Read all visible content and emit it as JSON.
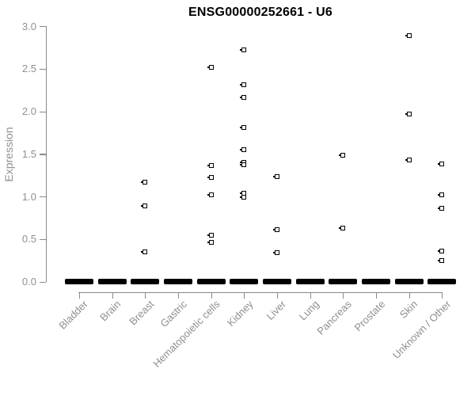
{
  "chart_data": {
    "type": "scatter",
    "title": "ENSG00000252661 - U6",
    "xlabel": "",
    "ylabel": "Expression",
    "ylim": [
      0.0,
      3.0
    ],
    "ytick_labels": [
      "0.0",
      "0.5",
      "1.0",
      "1.5",
      "2.0",
      "2.5",
      "3.0"
    ],
    "grid": false,
    "legend": false,
    "marker": "open-square",
    "categories": [
      "Bladder",
      "Brain",
      "Breast",
      "Gastric",
      "Hematopoietic cells",
      "Kidney",
      "Liver",
      "Lung",
      "Pancreas",
      "Prostate",
      "Skin",
      "Unknown / Other"
    ],
    "series": [
      {
        "name": "Bladder",
        "values": []
      },
      {
        "name": "Brain",
        "values": []
      },
      {
        "name": "Breast",
        "values": [
          1.17,
          0.89,
          0.35
        ]
      },
      {
        "name": "Gastric",
        "values": []
      },
      {
        "name": "Hematopoietic cells",
        "values": [
          2.52,
          1.36,
          1.22,
          1.02,
          0.54,
          0.46
        ]
      },
      {
        "name": "Kidney",
        "values": [
          2.72,
          2.31,
          2.16,
          1.81,
          1.55,
          1.4,
          1.37,
          1.04,
          0.99
        ]
      },
      {
        "name": "Liver",
        "values": [
          1.23,
          0.61,
          0.34
        ]
      },
      {
        "name": "Lung",
        "values": []
      },
      {
        "name": "Pancreas",
        "values": [
          1.48,
          0.63
        ]
      },
      {
        "name": "Prostate",
        "values": []
      },
      {
        "name": "Skin",
        "values": [
          2.89,
          1.97,
          1.43
        ]
      },
      {
        "name": "Unknown / Other",
        "values": [
          1.38,
          1.02,
          0.86,
          0.36,
          0.25
        ]
      }
    ],
    "zero_cluster_every_category": true
  },
  "colors": {
    "background": "#ffffff",
    "marker": "#000000",
    "axis": "#898989",
    "axis_text": "#8c9094",
    "title": "#000000"
  }
}
